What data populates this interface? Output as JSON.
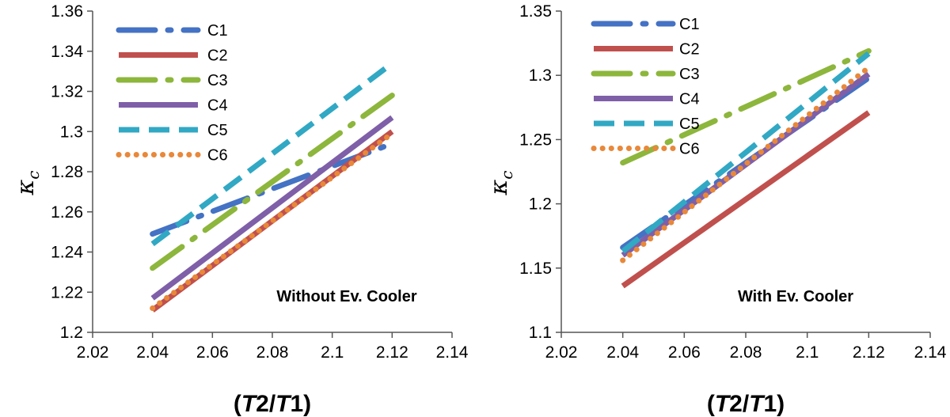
{
  "chart_data": [
    {
      "type": "line",
      "annotation": "Without Ev. Cooler",
      "xlabel": "(T2/T1)",
      "ylabel": "κc",
      "xlim": [
        2.02,
        2.14
      ],
      "ylim": [
        1.2,
        1.36
      ],
      "xticks": [
        "2.02",
        "2.04",
        "2.06",
        "2.08",
        "2.1",
        "2.12",
        "2.14"
      ],
      "yticks": [
        "1.2",
        "1.22",
        "1.24",
        "1.26",
        "1.28",
        "1.3",
        "1.32",
        "1.34",
        "1.36"
      ],
      "grid": false,
      "legend": "top-left",
      "series": [
        {
          "name": "C1",
          "color": "#4472C4",
          "style": "dashdot",
          "x": [
            2.04,
            2.12
          ],
          "y": [
            1.249,
            1.294
          ]
        },
        {
          "name": "C2",
          "color": "#C0504D",
          "style": "solid",
          "x": [
            2.04,
            2.12
          ],
          "y": [
            1.211,
            1.3
          ]
        },
        {
          "name": "C3",
          "color": "#8DB63C",
          "style": "dashdot",
          "x": [
            2.04,
            2.12
          ],
          "y": [
            1.232,
            1.318
          ]
        },
        {
          "name": "C4",
          "color": "#7F5FA8",
          "style": "solid",
          "x": [
            2.04,
            2.12
          ],
          "y": [
            1.217,
            1.307
          ]
        },
        {
          "name": "C5",
          "color": "#31A8C4",
          "style": "dash",
          "x": [
            2.04,
            2.12
          ],
          "y": [
            1.244,
            1.334
          ]
        },
        {
          "name": "C6",
          "color": "#E8883A",
          "style": "dot",
          "x": [
            2.04,
            2.12
          ],
          "y": [
            1.212,
            1.299
          ]
        }
      ]
    },
    {
      "type": "line",
      "annotation": "With Ev. Cooler",
      "xlabel": "(T2/T1)",
      "ylabel": "κc",
      "xlim": [
        2.02,
        2.14
      ],
      "ylim": [
        1.1,
        1.35
      ],
      "xticks": [
        "2.02",
        "2.04",
        "2.06",
        "2.08",
        "2.1",
        "2.12",
        "2.14"
      ],
      "yticks": [
        "1.1",
        "1.15",
        "1.2",
        "1.25",
        "1.3",
        "1.35"
      ],
      "grid": false,
      "legend": "top-left",
      "series": [
        {
          "name": "C1",
          "color": "#4472C4",
          "style": "dashdot",
          "x": [
            2.04,
            2.12
          ],
          "y": [
            1.166,
            1.298
          ]
        },
        {
          "name": "C2",
          "color": "#C0504D",
          "style": "solid",
          "x": [
            2.04,
            2.12
          ],
          "y": [
            1.136,
            1.271
          ]
        },
        {
          "name": "C3",
          "color": "#8DB63C",
          "style": "dashdot",
          "x": [
            2.04,
            2.12
          ],
          "y": [
            1.232,
            1.319
          ]
        },
        {
          "name": "C4",
          "color": "#7F5FA8",
          "style": "solid",
          "x": [
            2.04,
            2.12
          ],
          "y": [
            1.16,
            1.301
          ]
        },
        {
          "name": "C5",
          "color": "#31A8C4",
          "style": "dash",
          "x": [
            2.04,
            2.12
          ],
          "y": [
            1.163,
            1.317
          ]
        },
        {
          "name": "C6",
          "color": "#E8883A",
          "style": "dot",
          "x": [
            2.04,
            2.12
          ],
          "y": [
            1.156,
            1.306
          ]
        }
      ]
    }
  ]
}
